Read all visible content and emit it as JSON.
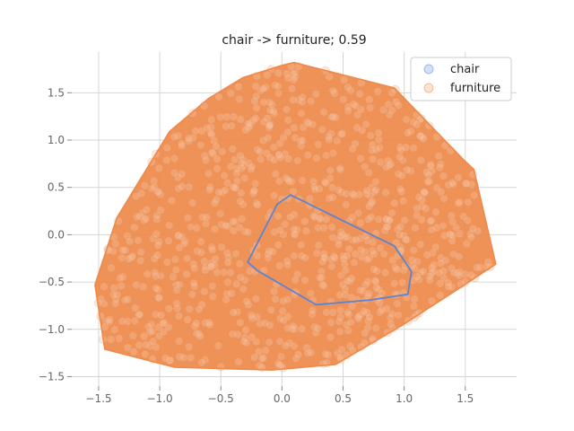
{
  "chart_data": {
    "type": "scatter",
    "title": "chair -> furniture; 0.59",
    "xlabel": "",
    "ylabel": "",
    "xlim": [
      -1.72,
      1.92
    ],
    "ylim": [
      -1.6,
      1.93
    ],
    "xticks": [
      -1.5,
      -1.0,
      -0.5,
      0.0,
      0.5,
      1.0,
      1.5
    ],
    "yticks": [
      -1.5,
      -1.0,
      -0.5,
      0.0,
      0.5,
      1.0,
      1.5
    ],
    "xtick_labels": [
      "−1.5",
      "−1.0",
      "−0.5",
      "0.0",
      "0.5",
      "1.0",
      "1.5"
    ],
    "ytick_labels": [
      "−1.5",
      "−1.0",
      "−0.5",
      "0.0",
      "0.5",
      "1.0",
      "1.5"
    ],
    "grid": true,
    "legend_position": "top-right",
    "series": [
      {
        "name": "chair",
        "color": "#5b84d6",
        "hull": [
          [
            0.07,
            0.42
          ],
          [
            -0.04,
            0.32
          ],
          [
            -0.28,
            -0.29
          ],
          [
            -0.2,
            -0.38
          ],
          [
            0.28,
            -0.74
          ],
          [
            0.72,
            -0.69
          ],
          [
            1.03,
            -0.63
          ],
          [
            1.06,
            -0.39
          ],
          [
            0.92,
            -0.12
          ]
        ]
      },
      {
        "name": "furniture",
        "color": "#ee8a4a",
        "hull": [
          [
            0.1,
            1.82
          ],
          [
            0.92,
            1.55
          ],
          [
            1.48,
            0.8
          ],
          [
            1.57,
            0.69
          ],
          [
            1.75,
            -0.31
          ],
          [
            1.47,
            -0.55
          ],
          [
            0.98,
            -0.96
          ],
          [
            0.44,
            -1.37
          ],
          [
            -0.08,
            -1.43
          ],
          [
            -0.88,
            -1.4
          ],
          [
            -1.45,
            -1.21
          ],
          [
            -1.53,
            -0.53
          ],
          [
            -1.35,
            0.18
          ],
          [
            -0.92,
            1.09
          ],
          [
            -0.6,
            1.44
          ],
          [
            -0.32,
            1.66
          ],
          [
            0.0,
            1.79
          ]
        ]
      }
    ]
  }
}
